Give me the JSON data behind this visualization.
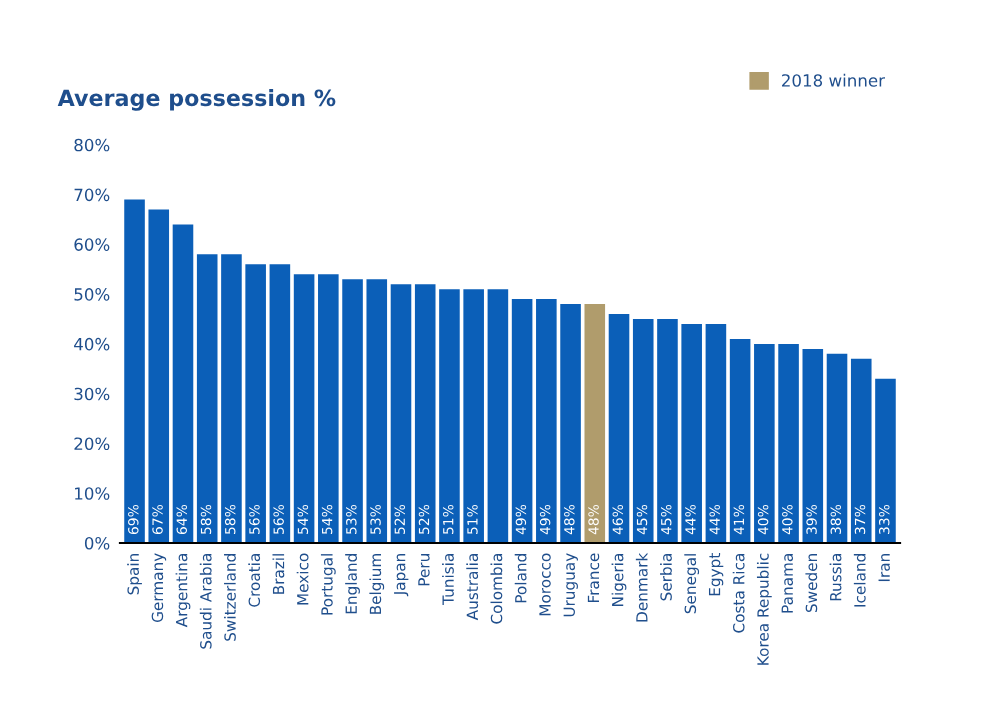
{
  "chart_data": {
    "type": "bar",
    "title": "Average possession %",
    "categories": [
      "Spain",
      "Germany",
      "Argentina",
      "Saudi Arabia",
      "Switzerland",
      "Croatia",
      "Brazil",
      "Mexico",
      "Portugal",
      "England",
      "Belgium",
      "Japan",
      "Peru",
      "Tunisia",
      "Australia",
      "Colombia",
      "Poland",
      "Morocco",
      "Uruguay",
      "France",
      "Nigeria",
      "Denmark",
      "Serbia",
      "Senegal",
      "Egypt",
      "Costa Rica",
      "Korea Republic",
      "Panama",
      "Sweden",
      "Russia",
      "Iceland",
      "Iran"
    ],
    "series": [
      {
        "color": "#0b5fb8",
        "values": [
          69,
          67,
          64,
          58,
          58,
          56,
          56,
          54,
          54,
          53,
          53,
          52,
          52,
          51,
          51,
          51,
          49,
          49,
          48,
          null,
          46,
          45,
          45,
          44,
          44,
          41,
          40,
          40,
          39,
          38,
          37,
          33
        ],
        "value_labels": [
          "69%",
          "67%",
          "64%",
          "58%",
          "58%",
          "56%",
          "56%",
          "54%",
          "54%",
          "53%",
          "53%",
          "52%",
          "52%",
          "51%",
          "51%",
          null,
          "49%",
          "49%",
          "48%",
          null,
          "46%",
          "45%",
          "45%",
          "44%",
          "44%",
          "41%",
          "40%",
          "40%",
          "39%",
          "38%",
          "37%",
          "33%"
        ]
      },
      {
        "name": "2018 winner",
        "color": "#b09c6c",
        "values": [
          null,
          null,
          null,
          null,
          null,
          null,
          null,
          null,
          null,
          null,
          null,
          null,
          null,
          null,
          null,
          null,
          null,
          null,
          null,
          48,
          null,
          null,
          null,
          null,
          null,
          null,
          null,
          null,
          null,
          null,
          null,
          null
        ],
        "value_labels": [
          null,
          null,
          null,
          null,
          null,
          null,
          null,
          null,
          null,
          null,
          null,
          null,
          null,
          null,
          null,
          null,
          null,
          null,
          null,
          "48%",
          null,
          null,
          null,
          null,
          null,
          null,
          null,
          null,
          null,
          null,
          null,
          null
        ]
      }
    ],
    "ylim": [
      0,
      80
    ],
    "yticks": [
      {
        "value": 0,
        "label": "0%"
      },
      {
        "value": 10,
        "label": "10%"
      },
      {
        "value": 20,
        "label": "20%"
      },
      {
        "value": 30,
        "label": "30%"
      },
      {
        "value": 40,
        "label": "40%"
      },
      {
        "value": 50,
        "label": "50%"
      },
      {
        "value": 60,
        "label": "60%"
      },
      {
        "value": 70,
        "label": "70%"
      },
      {
        "value": 80,
        "label": "80%"
      }
    ],
    "grid": false,
    "legend": "top right"
  }
}
